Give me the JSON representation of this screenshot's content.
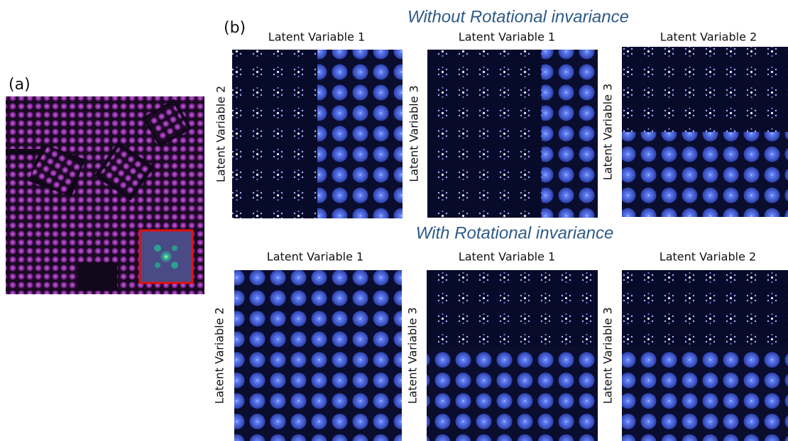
{
  "panel_a": {
    "label": "(a)"
  },
  "panel_b": {
    "label": "(b)",
    "sections": [
      {
        "title": "Without Rotational invariance",
        "panels": [
          {
            "x_label": "Latent Variable 1",
            "y_label": "Latent Variable 2"
          },
          {
            "x_label": "Latent Variable 1",
            "y_label": "Latent Variable 3"
          },
          {
            "x_label": "Latent Variable 2",
            "y_label": "Latent Variable 3"
          }
        ]
      },
      {
        "title": "With Rotational invariance",
        "panels": [
          {
            "x_label": "Latent Variable 1",
            "y_label": "Latent Variable 2"
          },
          {
            "x_label": "Latent Variable 1",
            "y_label": "Latent Variable 3"
          },
          {
            "x_label": "Latent Variable 2",
            "y_label": "Latent Variable 3"
          }
        ]
      }
    ]
  }
}
